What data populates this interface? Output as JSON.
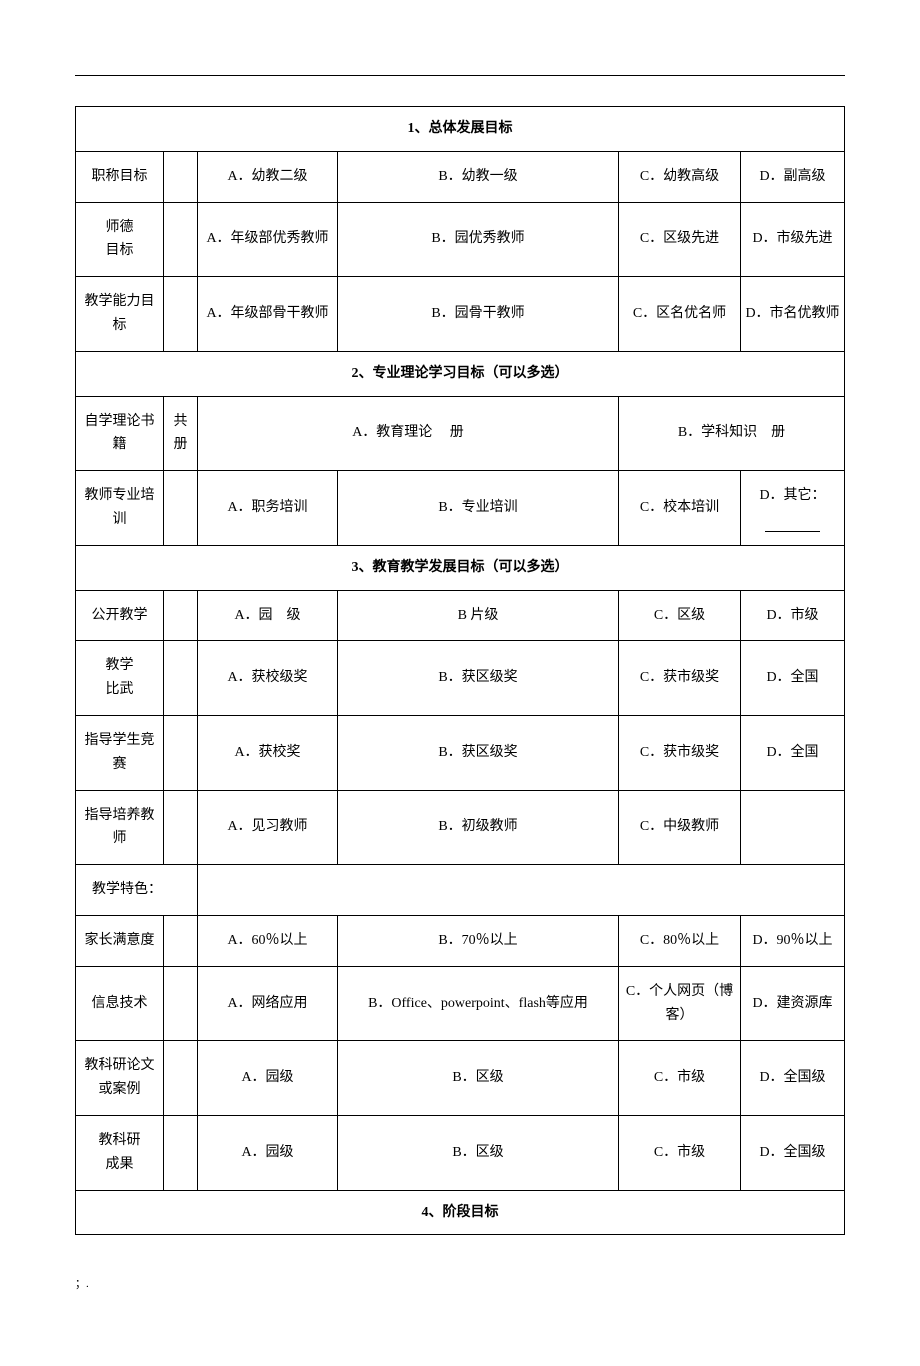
{
  "sections": {
    "s1": {
      "title": "1、总体发展目标",
      "rows": {
        "r1": {
          "label": "职称目标",
          "a": "A．幼教二级",
          "b": "B．幼教一级",
          "c": "C．幼教高级",
          "d": "D．副高级"
        },
        "r2": {
          "label": "师德\n目标",
          "a": "A．年级部优秀教师",
          "b": "B．园优秀教师",
          "c": "C．区级先进",
          "d": "D．市级先进"
        },
        "r3": {
          "label": "教学能力目标",
          "a": "A．年级部骨干教师",
          "b": "B．园骨干教师",
          "c": "C．区名优名师",
          "d": "D．市名优教师"
        }
      }
    },
    "s2": {
      "title": "2、专业理论学习目标（可以多选）",
      "rows": {
        "r1": {
          "label": "自学理论书籍",
          "narrow": "共\n册",
          "a": "A．教育理论  册",
          "b": "B．学科知识 册"
        },
        "r2": {
          "label": "教师专业培训",
          "a": "A．职务培训",
          "b": "B．专业培训",
          "c": "C．校本培训",
          "d": "D．其它："
        }
      }
    },
    "s3": {
      "title": "3、教育教学发展目标（可以多选）",
      "rows": {
        "r1": {
          "label": "公开教学",
          "a": "A．园 级",
          "b": "B 片级",
          "c": "C．区级",
          "d": "D．市级"
        },
        "r2": {
          "label": "教学\n比武",
          "a": "A．获校级奖",
          "b": "B．获区级奖",
          "c": "C．获市级奖",
          "d": "D．全国"
        },
        "r3": {
          "label": "指导学生竞赛",
          "a": "A．获校奖",
          "b": "B．获区级奖",
          "c": "C．获市级奖",
          "d": "D．全国"
        },
        "r4": {
          "label": "指导培养教师",
          "a": "A．见习教师",
          "b": "B．初级教师",
          "c": "C．中级教师",
          "d": ""
        },
        "r5": {
          "label": "教学特色："
        },
        "r6": {
          "label": "家长满意度",
          "a": "A．60％以上",
          "b": "B．70％以上",
          "c": "C．80％以上",
          "d": "D．90％以上"
        },
        "r7": {
          "label": "信息技术",
          "a": "A．网络应用",
          "b": "B．Office、powerpoint、flash等应用",
          "c": "C．个人网页（博客）",
          "d": "D．建资源库"
        },
        "r8": {
          "label": "教科研论文或案例",
          "a": "A．园级",
          "b": "B．区级",
          "c": "C．市级",
          "d": "D．全国级"
        },
        "r9": {
          "label": "教科研\n成果",
          "a": "A．园级",
          "b": "B．区级",
          "c": "C．市级",
          "d": "D．全国级"
        }
      }
    },
    "s4": {
      "title": "4、阶段目标"
    }
  },
  "footer": "；."
}
